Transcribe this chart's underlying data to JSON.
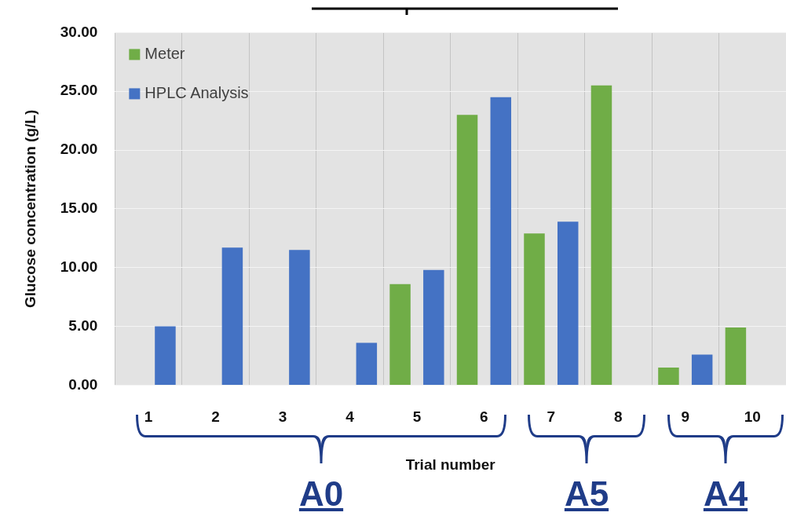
{
  "chart_data": {
    "type": "bar",
    "xlabel": "Trial number",
    "ylabel": "Glucose concentration (g/L)",
    "categories": [
      "1",
      "2",
      "3",
      "4",
      "5",
      "6",
      "7",
      "8",
      "9",
      "10"
    ],
    "series": [
      {
        "name": "Meter",
        "color": "#70ad47",
        "values": [
          null,
          null,
          null,
          null,
          8.6,
          23.0,
          12.9,
          25.5,
          1.5,
          4.9
        ]
      },
      {
        "name": "HPLC Analysis",
        "color": "#4472c4",
        "values": [
          5.0,
          11.7,
          11.5,
          3.6,
          9.8,
          24.5,
          13.9,
          null,
          2.6,
          null
        ]
      }
    ],
    "ylim": [
      0,
      30
    ],
    "yticks": [
      {
        "value": 0,
        "label": "0.00"
      },
      {
        "value": 5,
        "label": "5.00"
      },
      {
        "value": 10,
        "label": "10.00"
      },
      {
        "value": 15,
        "label": "15.00"
      },
      {
        "value": 20,
        "label": "20.00"
      },
      {
        "value": 25,
        "label": "25.00"
      },
      {
        "value": 30,
        "label": "30.00"
      }
    ],
    "grid": true,
    "legend": "top left",
    "annotations": [
      "A0",
      "A5",
      "A4"
    ]
  }
}
